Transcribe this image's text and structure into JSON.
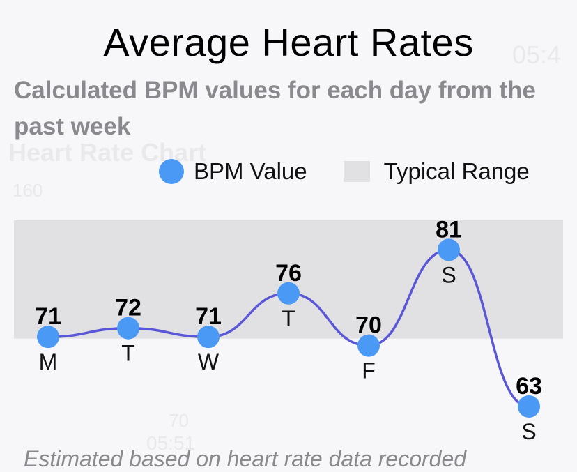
{
  "header": {
    "title": "Average Heart Rates",
    "subtitle": "Calculated BPM values for each day from the past week"
  },
  "legend": {
    "items": [
      {
        "label": "BPM Value",
        "color": "#4a9af5",
        "shape": "circle"
      },
      {
        "label": "Typical Range",
        "color": "#e1e1e3",
        "shape": "square"
      }
    ]
  },
  "background_ghost": {
    "chart_label": "Heart Rate Chart",
    "value_a": "160",
    "time_a": "05:4",
    "time_b": "05:51",
    "bpm_b": "70"
  },
  "footnote": "Estimated based on heart rate data recorded",
  "colors": {
    "line": "#5a57d6",
    "dot": "#4a9af5",
    "range_band": "#e1e1e3"
  },
  "chart_data": {
    "type": "line",
    "categories": [
      "M",
      "T",
      "W",
      "T",
      "F",
      "S",
      "S"
    ],
    "series": [
      {
        "name": "BPM Value",
        "values": [
          71,
          72,
          71,
          76,
          70,
          81,
          63
        ]
      }
    ],
    "typical_range": [
      70.8,
      84.4
    ],
    "ylim": [
      63,
      84.4
    ],
    "title": "Average Heart Rates",
    "subtitle": "Calculated BPM values for each day from the past week",
    "grid": false,
    "legend_position": "top-right",
    "curve": "smooth"
  }
}
